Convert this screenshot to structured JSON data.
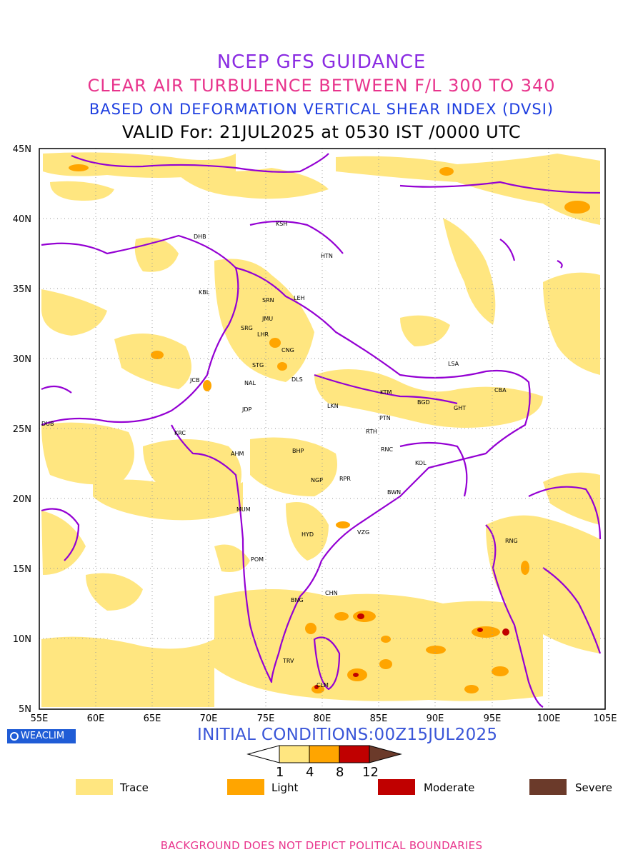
{
  "titles": {
    "line1": "NCEP GFS GUIDANCE",
    "line2": "CLEAR AIR TURBULENCE BETWEEN F/L 300 TO 340",
    "line3": "BASED ON DEFORMATION VERTICAL SHEAR INDEX (DVSI)",
    "line4": "VALID For: 21JUL2025 at 0530 IST /0000 UTC"
  },
  "axes": {
    "lon_labels": [
      "55E",
      "60E",
      "65E",
      "70E",
      "75E",
      "80E",
      "85E",
      "90E",
      "95E",
      "100E",
      "105E"
    ],
    "lat_labels": [
      "45N",
      "40N",
      "35N",
      "30N",
      "25N",
      "20N",
      "15N",
      "10N",
      "5N"
    ]
  },
  "stations": [
    {
      "code": "KSH"
    },
    {
      "code": "DHB"
    },
    {
      "code": "HTN"
    },
    {
      "code": "KBL"
    },
    {
      "code": "SRN"
    },
    {
      "code": "LEH"
    },
    {
      "code": "JMU"
    },
    {
      "code": "SRG"
    },
    {
      "code": "LHR"
    },
    {
      "code": "CNG"
    },
    {
      "code": "STG"
    },
    {
      "code": "LSA"
    },
    {
      "code": "JCB"
    },
    {
      "code": "NAL"
    },
    {
      "code": "DLS"
    },
    {
      "code": "KTM"
    },
    {
      "code": "CBA"
    },
    {
      "code": "BGD"
    },
    {
      "code": "GHT"
    },
    {
      "code": "JDP"
    },
    {
      "code": "LKN"
    },
    {
      "code": "PTN"
    },
    {
      "code": "DUB"
    },
    {
      "code": "KRC"
    },
    {
      "code": "RTH"
    },
    {
      "code": "AHM"
    },
    {
      "code": "BHP"
    },
    {
      "code": "RNC"
    },
    {
      "code": "KOL"
    },
    {
      "code": "NGP"
    },
    {
      "code": "RPR"
    },
    {
      "code": "BWN"
    },
    {
      "code": "MUM"
    },
    {
      "code": "HYD"
    },
    {
      "code": "VZG"
    },
    {
      "code": "RNG"
    },
    {
      "code": "POM"
    },
    {
      "code": "CHN"
    },
    {
      "code": "BNG"
    },
    {
      "code": "TRV"
    },
    {
      "code": "CLM"
    }
  ],
  "brand": "WEACLIM",
  "initial_conditions": "INITIAL CONDITIONS:00Z15JUL2025",
  "colorbar": {
    "ticks": [
      "1",
      "4",
      "8",
      "12"
    ],
    "colors": [
      "#ffffff",
      "#ffe680",
      "#ffa500",
      "#c00000",
      "#6b3a2a"
    ]
  },
  "legend": [
    {
      "label": "Trace",
      "color": "#ffe680"
    },
    {
      "label": "Light",
      "color": "#ffa500"
    },
    {
      "label": "Moderate",
      "color": "#c00000"
    },
    {
      "label": "Severe",
      "color": "#6b3a2a"
    }
  ],
  "footer": "BACKGROUND DOES NOT DEPICT POLITICAL BOUNDARIES",
  "colors": {
    "boundary": "#9400d3",
    "trace": "#ffe680",
    "light": "#ffa500",
    "moderate": "#c00000",
    "severe": "#6b3a2a"
  }
}
